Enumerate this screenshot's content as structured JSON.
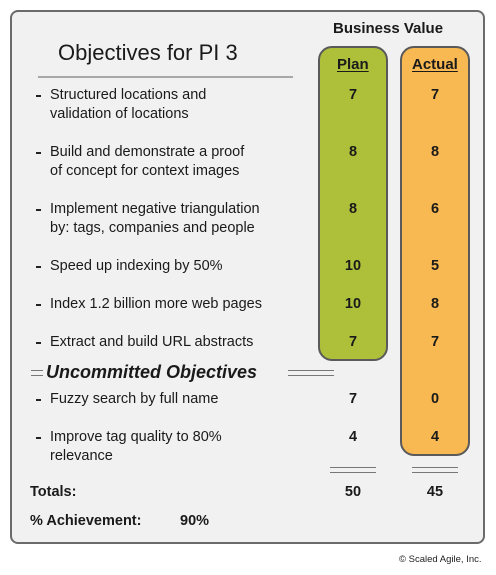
{
  "title": "Objectives for PI 3",
  "business_value_header": "Business Value",
  "columns": {
    "plan": "Plan",
    "actual": "Actual"
  },
  "committed": [
    {
      "text": "Structured locations and\nvalidation of locations",
      "plan": "7",
      "actual": "7"
    },
    {
      "text": "Build and demonstrate a proof\nof concept for context images",
      "plan": "8",
      "actual": "8"
    },
    {
      "text": "Implement negative triangulation\nby: tags, companies and people",
      "plan": "8",
      "actual": "6"
    },
    {
      "text": "Speed up indexing by 50%",
      "plan": "10",
      "actual": "5"
    },
    {
      "text": "Index 1.2 billion more web pages",
      "plan": "10",
      "actual": "8"
    },
    {
      "text": "Extract and build URL abstracts",
      "plan": "7",
      "actual": "7"
    }
  ],
  "uncommitted_heading": "Uncommitted Objectives",
  "uncommitted": [
    {
      "text": "Fuzzy search by full name",
      "plan": "7",
      "actual": "0"
    },
    {
      "text": "Improve tag quality to 80%\nrelevance",
      "plan": "4",
      "actual": "4"
    }
  ],
  "totals": {
    "label": "Totals:",
    "plan": "50",
    "actual": "45"
  },
  "achievement": {
    "label": "% Achievement:",
    "value": "90%"
  },
  "copyright": "© Scaled Agile, Inc.",
  "colors": {
    "plan_fill": "#aec03a",
    "actual_fill": "#f8b852",
    "panel_bg": "#f1f1f2",
    "border": "#6b6b6b"
  }
}
